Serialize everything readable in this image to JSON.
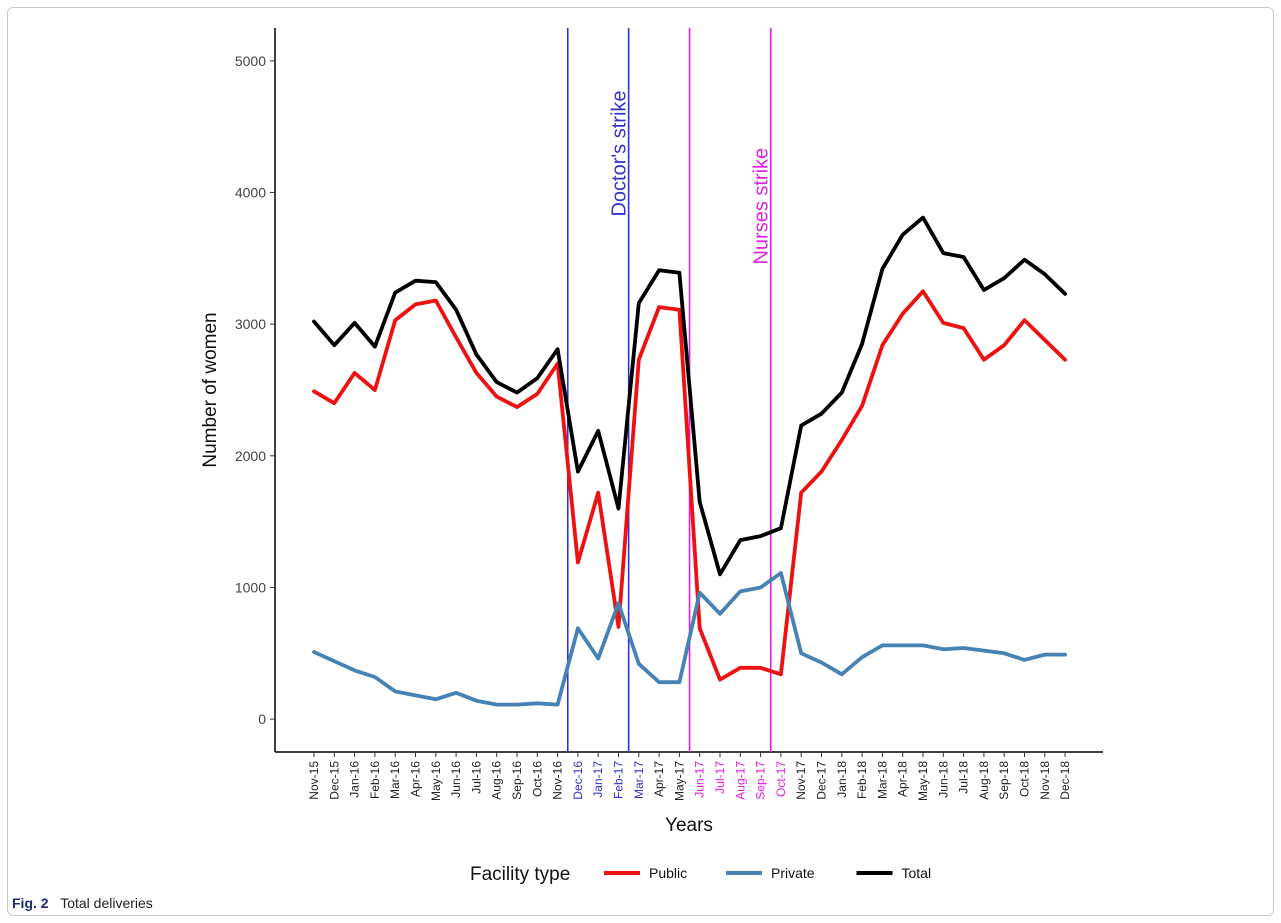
{
  "chart_data": {
    "type": "line",
    "xlabel": "Years",
    "ylabel": "Number of women",
    "ylim": [
      -250,
      5250
    ],
    "yticks": [
      0,
      1000,
      2000,
      3000,
      4000,
      5000
    ],
    "categories": [
      "Nov-15",
      "Dec-15",
      "Jan-16",
      "Feb-16",
      "Mar-16",
      "Apr-16",
      "May-16",
      "Jun-16",
      "Jul-16",
      "Aug-16",
      "Sep-16",
      "Oct-16",
      "Nov-16",
      "Dec-16",
      "Jan-17",
      "Feb-17",
      "Mar-17",
      "Apr-17",
      "May-17",
      "Jun-17",
      "Jul-17",
      "Aug-17",
      "Sep-17",
      "Oct-17",
      "Nov-17",
      "Dec-17",
      "Jan-18",
      "Feb-18",
      "Mar-18",
      "Apr-18",
      "May-18",
      "Jun-18",
      "Jul-18",
      "Aug-18",
      "Sep-18",
      "Oct-18",
      "Nov-18",
      "Dec-18"
    ],
    "tick_colors": {
      "Dec-16": "#3333cc",
      "Jan-17": "#3333cc",
      "Feb-17": "#3333cc",
      "Mar-17": "#3333cc",
      "Jun-17": "#e020e0",
      "Jul-17": "#e020e0",
      "Aug-17": "#e020e0",
      "Sep-17": "#e020e0",
      "Oct-17": "#e020e0"
    },
    "grid": false,
    "legend_position": "bottom",
    "legend_title": "Facility type",
    "series": [
      {
        "name": "Public",
        "color": "#ee1111",
        "values": [
          2490,
          2400,
          2630,
          2500,
          3030,
          3150,
          3180,
          2900,
          2630,
          2450,
          2370,
          2470,
          2700,
          1190,
          1720,
          700,
          2730,
          3130,
          3110,
          690,
          300,
          390,
          390,
          340,
          1720,
          1880,
          2120,
          2380,
          2840,
          3080,
          3250,
          3010,
          2970,
          2730,
          2840,
          3030,
          2880,
          2730
        ]
      },
      {
        "name": "Private",
        "color": "#4682b4",
        "values": [
          510,
          440,
          370,
          320,
          210,
          180,
          150,
          200,
          140,
          110,
          110,
          120,
          110,
          690,
          460,
          880,
          420,
          280,
          280,
          960,
          800,
          970,
          1000,
          1110,
          500,
          430,
          340,
          470,
          560,
          560,
          560,
          530,
          540,
          520,
          500,
          450,
          490,
          490
        ]
      },
      {
        "name": "Total",
        "color": "#000000",
        "values": [
          3020,
          2840,
          3010,
          2830,
          3240,
          3330,
          3320,
          3110,
          2770,
          2560,
          2480,
          2590,
          2810,
          1880,
          2190,
          1600,
          3160,
          3410,
          3390,
          1650,
          1100,
          1360,
          1390,
          1450,
          2230,
          2320,
          2480,
          2850,
          3420,
          3680,
          3810,
          3540,
          3510,
          3260,
          3350,
          3490,
          3380,
          3230
        ]
      }
    ],
    "annotations": [
      {
        "label": "Doctor's strike",
        "color": "#3333cc",
        "lines_at": [
          12.5,
          15.5
        ],
        "label_at": 15.4,
        "label_y": 3400
      },
      {
        "label": "Nurses strike",
        "color": "#e020e0",
        "lines_at": [
          18.5,
          22.5
        ],
        "label_at": 22.4,
        "label_y": 3000
      }
    ]
  },
  "caption": {
    "fig_label": "Fig. 2",
    "text": "Total deliveries"
  }
}
